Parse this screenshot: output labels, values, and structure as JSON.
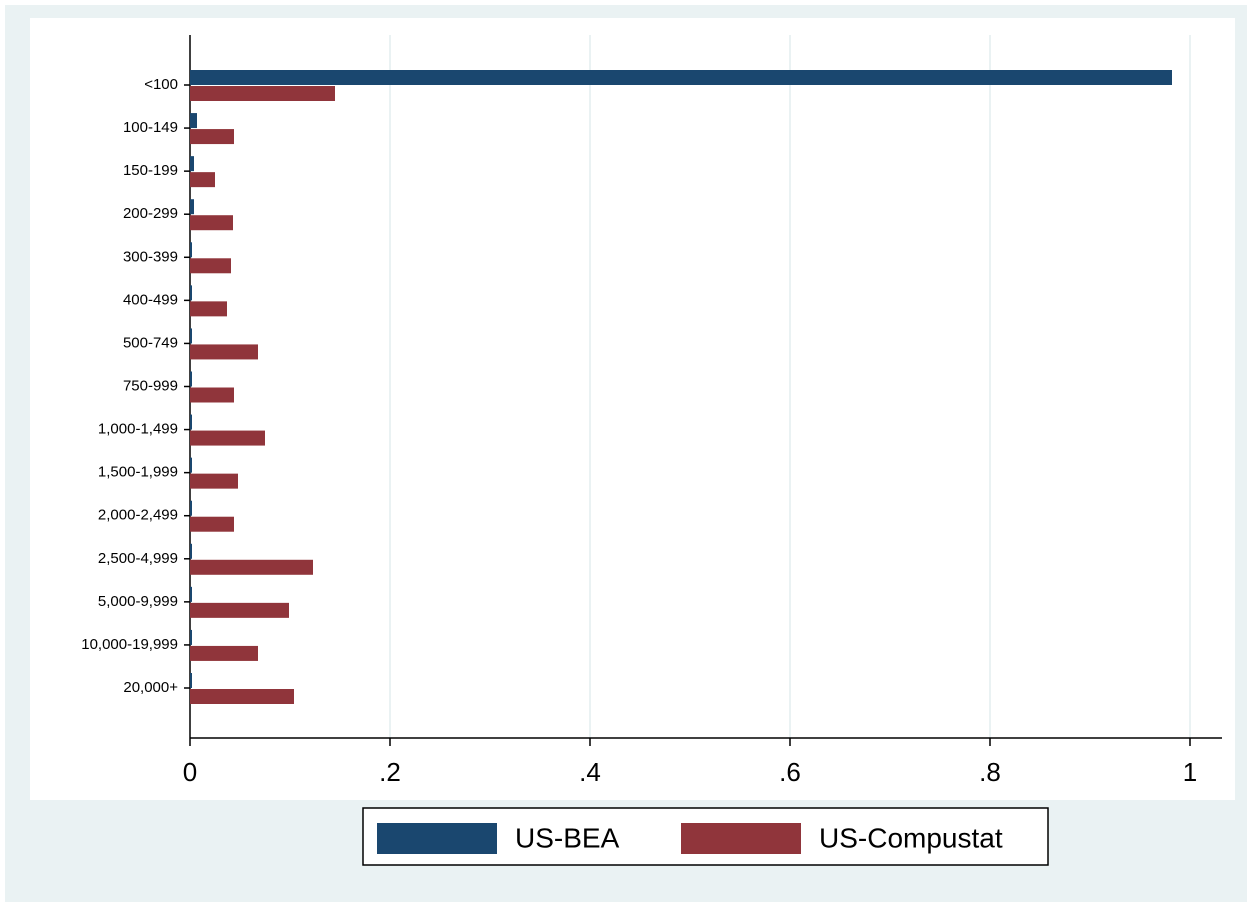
{
  "chart_data": {
    "type": "barh",
    "categories": [
      "<100",
      "100-149",
      "150-199",
      "200-299",
      "300-399",
      "400-499",
      "500-749",
      "750-999",
      "1,000-1,499",
      "1,500-1,999",
      "2,000-2,499",
      "2,500-4,999",
      "5,000-9,999",
      "10,000-19,999",
      "20,000+"
    ],
    "series": [
      {
        "name": "US-BEA",
        "color": "#1a476f",
        "values": [
          0.982,
          0.007,
          0.004,
          0.004,
          0.002,
          0.002,
          0.002,
          0.002,
          0.002,
          0.002,
          0.002,
          0.002,
          0.002,
          0.002,
          0.002
        ]
      },
      {
        "name": "US-Compustat",
        "color": "#90353b",
        "values": [
          0.145,
          0.044,
          0.025,
          0.043,
          0.041,
          0.037,
          0.068,
          0.044,
          0.075,
          0.048,
          0.044,
          0.123,
          0.099,
          0.068,
          0.104
        ]
      }
    ],
    "xlim": [
      0,
      1.032
    ],
    "xticks": [
      0,
      {
        "value": 0.2,
        "label": ".2"
      },
      {
        "value": 0.4,
        "label": ".4"
      },
      {
        "value": 0.6,
        "label": ".6"
      },
      {
        "value": 0.8,
        "label": ".8"
      },
      1
    ],
    "grid": true,
    "legend": "bottom"
  }
}
